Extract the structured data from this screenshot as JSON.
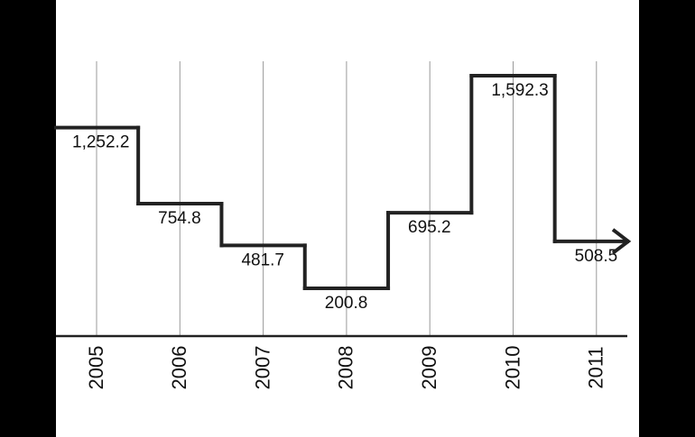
{
  "chart_data": {
    "type": "step",
    "categories": [
      "2005",
      "2006",
      "2007",
      "2008",
      "2009",
      "2010",
      "2011"
    ],
    "values": [
      1252.2,
      754.8,
      481.7,
      200.8,
      695.2,
      1592.3,
      508.5
    ],
    "value_labels": [
      "1,252.2",
      "754.8",
      "481.7",
      "200.8",
      "695.2",
      "1,592.3",
      "508.5"
    ],
    "color": "#222222",
    "grid": true
  }
}
